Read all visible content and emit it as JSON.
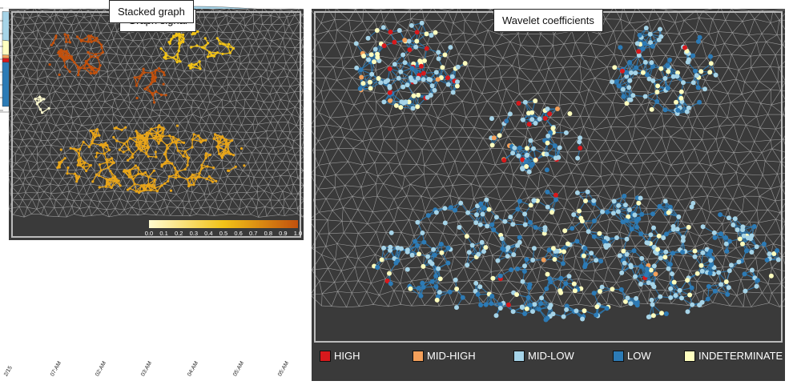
{
  "signal_panel": {
    "title": "Graph signal",
    "colorbar_ticks": [
      "0.0",
      "0.1",
      "0.2",
      "0.3",
      "0.4",
      "0.5",
      "0.6",
      "0.7",
      "0.8",
      "0.9",
      "1.0"
    ],
    "colors": {
      "low": "#fffbd0",
      "mid": "#f2c318",
      "high": "#c2510d",
      "mesh": "#9a9a9a",
      "bg": "#3a3a3a"
    }
  },
  "wavelet_panel": {
    "title": "Wavelet coefficients",
    "legend": [
      {
        "label": "HIGH",
        "color": "#d7191c"
      },
      {
        "label": "MID-HIGH",
        "color": "#f4a05a"
      },
      {
        "label": "MID-LOW",
        "color": "#a6d4e8"
      },
      {
        "label": "LOW",
        "color": "#2c7bb6"
      },
      {
        "label": "INDETERMINATE",
        "color": "#ffffbf"
      }
    ]
  },
  "stacked_panel": {
    "title": "Stacked graph",
    "x_ticks": [
      "2/15",
      "07:AM",
      "02:AM",
      "03:AM",
      "04:AM",
      "05:AM",
      "05:AM"
    ],
    "layers": [
      {
        "name": "LOW",
        "color": "#2c7bb6"
      },
      {
        "name": "HIGH",
        "color": "#d7191c"
      },
      {
        "name": "MID-HIGH",
        "color": "#f4a05a"
      },
      {
        "name": "INDETERMINATE",
        "color": "#ffffbf"
      },
      {
        "name": "MID-LOW",
        "color": "#a6d4e8"
      }
    ]
  }
}
